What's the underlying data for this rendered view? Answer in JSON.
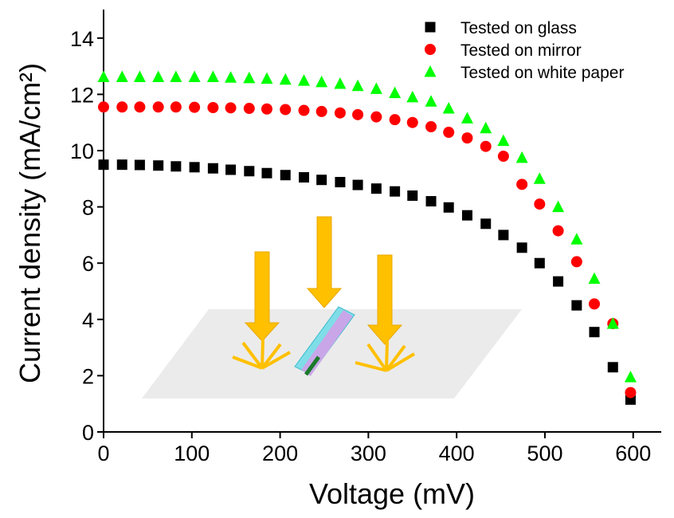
{
  "chart_data": {
    "type": "scatter",
    "x_label": "Voltage (mV)",
    "y_label": "Current density (mA/cm²)",
    "x": [
      0,
      21,
      41,
      62,
      82,
      103,
      124,
      144,
      165,
      185,
      206,
      227,
      247,
      268,
      288,
      309,
      330,
      350,
      371,
      391,
      412,
      433,
      453,
      474,
      494,
      515,
      536,
      556,
      577,
      597
    ],
    "series": [
      {
        "name": "Tested on glass",
        "color": "#000000",
        "marker": "square",
        "values": [
          9.5,
          9.5,
          9.49,
          9.47,
          9.44,
          9.41,
          9.37,
          9.32,
          9.27,
          9.2,
          9.13,
          9.05,
          8.96,
          8.88,
          8.78,
          8.65,
          8.55,
          8.4,
          8.2,
          7.98,
          7.7,
          7.4,
          7.0,
          6.55,
          6.0,
          5.35,
          4.5,
          3.55,
          2.3,
          1.15
        ]
      },
      {
        "name": "Tested on mirror",
        "color": "#ff0000",
        "marker": "circle",
        "values": [
          11.55,
          11.55,
          11.55,
          11.55,
          11.55,
          11.54,
          11.53,
          11.52,
          11.5,
          11.48,
          11.46,
          11.43,
          11.39,
          11.34,
          11.28,
          11.2,
          11.1,
          11.0,
          10.85,
          10.65,
          10.45,
          10.15,
          9.8,
          8.8,
          8.1,
          7.15,
          6.05,
          4.55,
          3.85,
          1.4
        ]
      },
      {
        "name": "Tested on white paper",
        "color": "#00ff00",
        "marker": "triangle",
        "values": [
          12.62,
          12.62,
          12.62,
          12.62,
          12.62,
          12.62,
          12.62,
          12.6,
          12.58,
          12.56,
          12.53,
          12.49,
          12.44,
          12.38,
          12.3,
          12.2,
          12.05,
          11.9,
          11.75,
          11.5,
          11.15,
          10.8,
          10.35,
          9.75,
          9.0,
          8.0,
          6.85,
          5.45,
          3.85,
          1.95
        ]
      }
    ],
    "xlim": [
      0,
      630
    ],
    "xticks": [
      0,
      100,
      200,
      300,
      400,
      500,
      600
    ],
    "ylim": [
      0,
      15
    ],
    "yticks": [
      0,
      2,
      4,
      6,
      8,
      10,
      12,
      14
    ],
    "legend": "top-right",
    "grid": false
  }
}
